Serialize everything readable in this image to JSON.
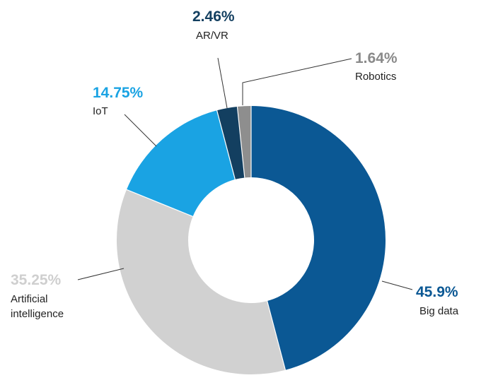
{
  "chart_data": {
    "type": "pie",
    "variant": "donut",
    "title": "",
    "legend": "none",
    "series": [
      {
        "values": [
          45.9,
          35.25,
          14.75,
          2.46,
          1.64
        ],
        "categories": [
          "Big data",
          "Artificial intelligence",
          "IoT",
          "AR/VR",
          "Robotics"
        ]
      }
    ],
    "slices": [
      {
        "label": "Big data",
        "label_lines": [
          "Big data"
        ],
        "value": 45.9,
        "value_text": "45.9%",
        "color": "#0b5894",
        "value_color": "#0b5894"
      },
      {
        "label": "Artificial intelligence",
        "label_lines": [
          "Artificial",
          "intelligence"
        ],
        "value": 35.25,
        "value_text": "35.25%",
        "color": "#d1d1d1",
        "value_color": "#cfcfcf"
      },
      {
        "label": "IoT",
        "label_lines": [
          "IoT"
        ],
        "value": 14.75,
        "value_text": "14.75%",
        "color": "#1aa3e3",
        "value_color": "#1aa3e3"
      },
      {
        "label": "AR/VR",
        "label_lines": [
          "AR/VR"
        ],
        "value": 2.46,
        "value_text": "2.46%",
        "color": "#133f60",
        "value_color": "#133f60"
      },
      {
        "label": "Robotics",
        "label_lines": [
          "Robotics"
        ],
        "value": 1.64,
        "value_text": "1.64%",
        "color": "#8e8e8e",
        "value_color": "#8a8a8a"
      }
    ]
  }
}
